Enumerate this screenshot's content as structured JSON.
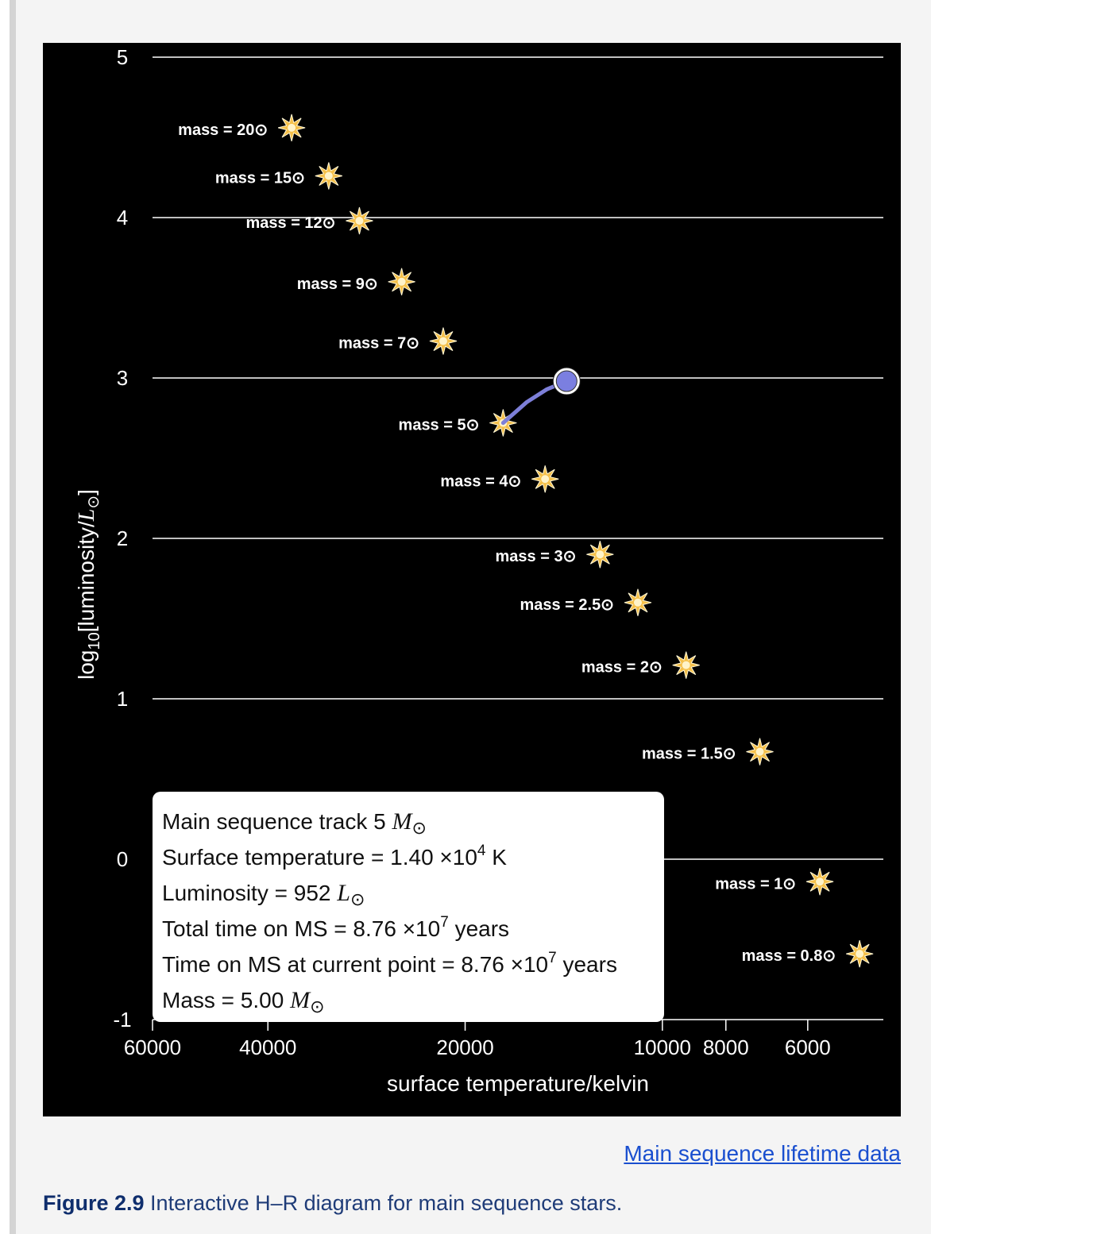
{
  "chart_data": {
    "type": "scatter",
    "ylabel": "log10[luminosity/L⊙]",
    "xlabel": "surface temperature/kelvin",
    "x_scale": "log, reversed",
    "xlim": [
      60000,
      4600
    ],
    "ylim": [
      -1,
      5
    ],
    "grid": "horizontal",
    "y_ticks": [
      "5",
      "4",
      "3",
      "2",
      "1",
      "0",
      "-1"
    ],
    "x_ticks": [
      "60000",
      "40000",
      "20000",
      "10000",
      "8000",
      "6000"
    ],
    "stars": [
      {
        "label": "mass = 20⊙",
        "mass": 20,
        "temperature": 36800,
        "log_luminosity": 4.56
      },
      {
        "label": "mass = 15⊙",
        "mass": 15,
        "temperature": 32300,
        "log_luminosity": 4.26
      },
      {
        "label": "mass = 12⊙",
        "mass": 12,
        "temperature": 29000,
        "log_luminosity": 3.98
      },
      {
        "label": "mass = 9⊙",
        "mass": 9,
        "temperature": 25000,
        "log_luminosity": 3.6
      },
      {
        "label": "mass = 7⊙",
        "mass": 7,
        "temperature": 21600,
        "log_luminosity": 3.23
      },
      {
        "label": "mass = 5⊙",
        "mass": 5,
        "temperature": 17500,
        "log_luminosity": 2.72
      },
      {
        "label": "mass = 4⊙",
        "mass": 4,
        "temperature": 15100,
        "log_luminosity": 2.37
      },
      {
        "label": "mass = 3⊙",
        "mass": 3,
        "temperature": 12450,
        "log_luminosity": 1.9
      },
      {
        "label": "mass = 2.5⊙",
        "mass": 2.5,
        "temperature": 10900,
        "log_luminosity": 1.6
      },
      {
        "label": "mass = 2⊙",
        "mass": 2,
        "temperature": 9200,
        "log_luminosity": 1.21
      },
      {
        "label": "mass = 1.5⊙",
        "mass": 1.5,
        "temperature": 7100,
        "log_luminosity": 0.67
      },
      {
        "label": "mass = 1⊙",
        "mass": 1,
        "temperature": 5750,
        "log_luminosity": -0.14
      },
      {
        "label": "mass = 0.8⊙",
        "mass": 0.8,
        "temperature": 5000,
        "log_luminosity": -0.59
      }
    ],
    "track": {
      "points": [
        {
          "temperature": 17500,
          "log_luminosity": 2.72
        },
        {
          "temperature": 16100,
          "log_luminosity": 2.85
        },
        {
          "temperature": 15000,
          "log_luminosity": 2.93
        },
        {
          "temperature": 14000,
          "log_luminosity": 2.98
        }
      ],
      "color": "#7d7fd8"
    },
    "current_point": {
      "temperature": 14000,
      "log_luminosity": 2.98
    }
  },
  "colors": {
    "plot_bg": "#000000",
    "grid": "#ffffff",
    "star": "#f5c04a",
    "marker_fill": "#7b7fe0",
    "link": "#1a4fcf"
  },
  "info": {
    "track_title": "Main sequence track 5",
    "track_unit": "M",
    "temp_prefix": "Surface temperature = 1.40 ×10",
    "temp_exp": "4",
    "temp_suffix": " K",
    "lum_prefix": "Luminosity = 952",
    "lum_unit": "L",
    "total_prefix": "Total time on MS = 8.76 ×10",
    "total_exp": "7",
    "total_suffix": " years",
    "current_prefix": "Time on MS at current point = 8.76 ×10",
    "current_exp": "7",
    "current_suffix": " years",
    "mass_prefix": "Mass = 5.00",
    "mass_unit": "M",
    "sun_symbol": "⊙"
  },
  "link_text": "Main sequence lifetime data",
  "caption": {
    "number": "Figure 2.9",
    "text": " Interactive H–R diagram for main sequence stars."
  }
}
